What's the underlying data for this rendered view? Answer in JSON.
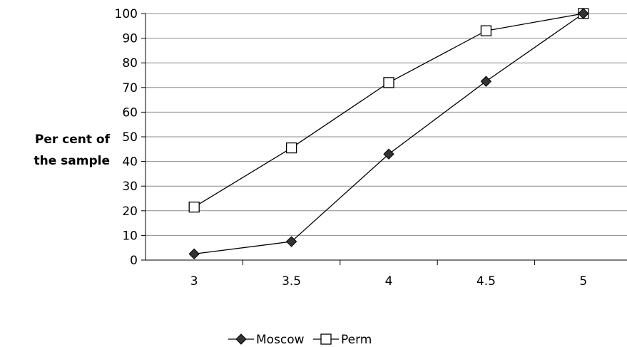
{
  "chart_data": {
    "type": "line",
    "title": "",
    "ylabel_lines": [
      "Per cent of",
      "the sample"
    ],
    "xlabel": "",
    "categories": [
      "3",
      "3.5",
      "4",
      "4.5",
      "5"
    ],
    "ylim": [
      0,
      100
    ],
    "yticks": [
      "0",
      "10",
      "20",
      "30",
      "40",
      "50",
      "60",
      "70",
      "80",
      "90",
      "100"
    ],
    "grid": true,
    "legend_position": "bottom",
    "series": [
      {
        "name": "Moscow",
        "marker": "diamond-filled",
        "color": "#000000",
        "values": [
          2.5,
          7.5,
          43,
          72.5,
          100
        ]
      },
      {
        "name": "Perm",
        "marker": "square-open",
        "color": "#000000",
        "values": [
          21.5,
          45.5,
          72,
          93,
          100
        ]
      }
    ]
  }
}
